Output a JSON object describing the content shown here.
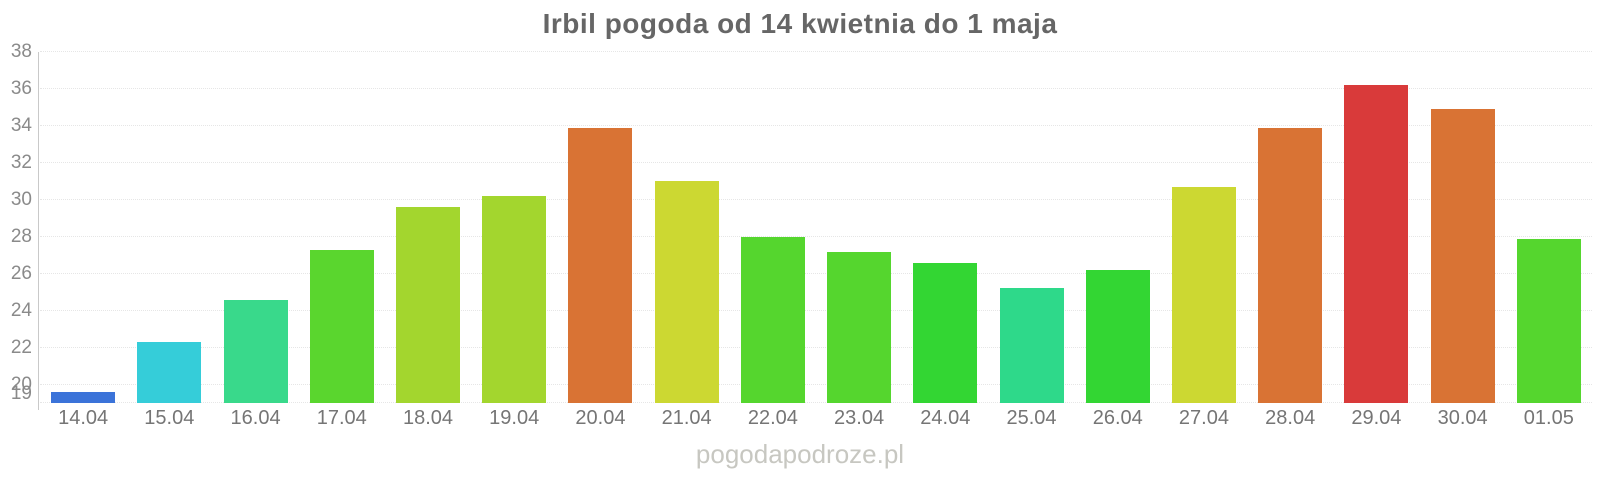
{
  "chart_data": {
    "type": "bar",
    "title": "Irbil pogoda od 14 kwietnia do 1 maja",
    "categories": [
      "14.04",
      "15.04",
      "16.04",
      "17.04",
      "18.04",
      "19.04",
      "20.04",
      "21.04",
      "22.04",
      "23.04",
      "24.04",
      "25.04",
      "26.04",
      "27.04",
      "28.04",
      "29.04",
      "30.04",
      "01.05"
    ],
    "values": [
      19.6,
      22.3,
      24.6,
      27.3,
      29.6,
      30.2,
      33.9,
      31.0,
      28.0,
      27.2,
      26.6,
      25.2,
      26.2,
      30.7,
      33.9,
      36.2,
      34.9,
      27.9
    ],
    "bar_colors": [
      "#3b73d9",
      "#35cdd9",
      "#39d98b",
      "#5ad62e",
      "#a3d62e",
      "#a3d62e",
      "#d97334",
      "#ccd832",
      "#55d62e",
      "#55d62e",
      "#33d633",
      "#2ed98a",
      "#33d633",
      "#ccd832",
      "#d97334",
      "#d93a3a",
      "#d97334",
      "#55d62e"
    ],
    "xlabel": "",
    "ylabel": "",
    "ylim": [
      19,
      38
    ],
    "yticks": [
      38,
      36,
      34,
      32,
      30,
      28,
      26,
      24,
      22,
      20,
      19
    ],
    "grid": "horizontal-dotted",
    "legend": "none",
    "gridline_color": "#e6e6e6",
    "axis_line_color": "#c9c9c9"
  },
  "watermark": {
    "text": "pogodapodroze.pl"
  }
}
